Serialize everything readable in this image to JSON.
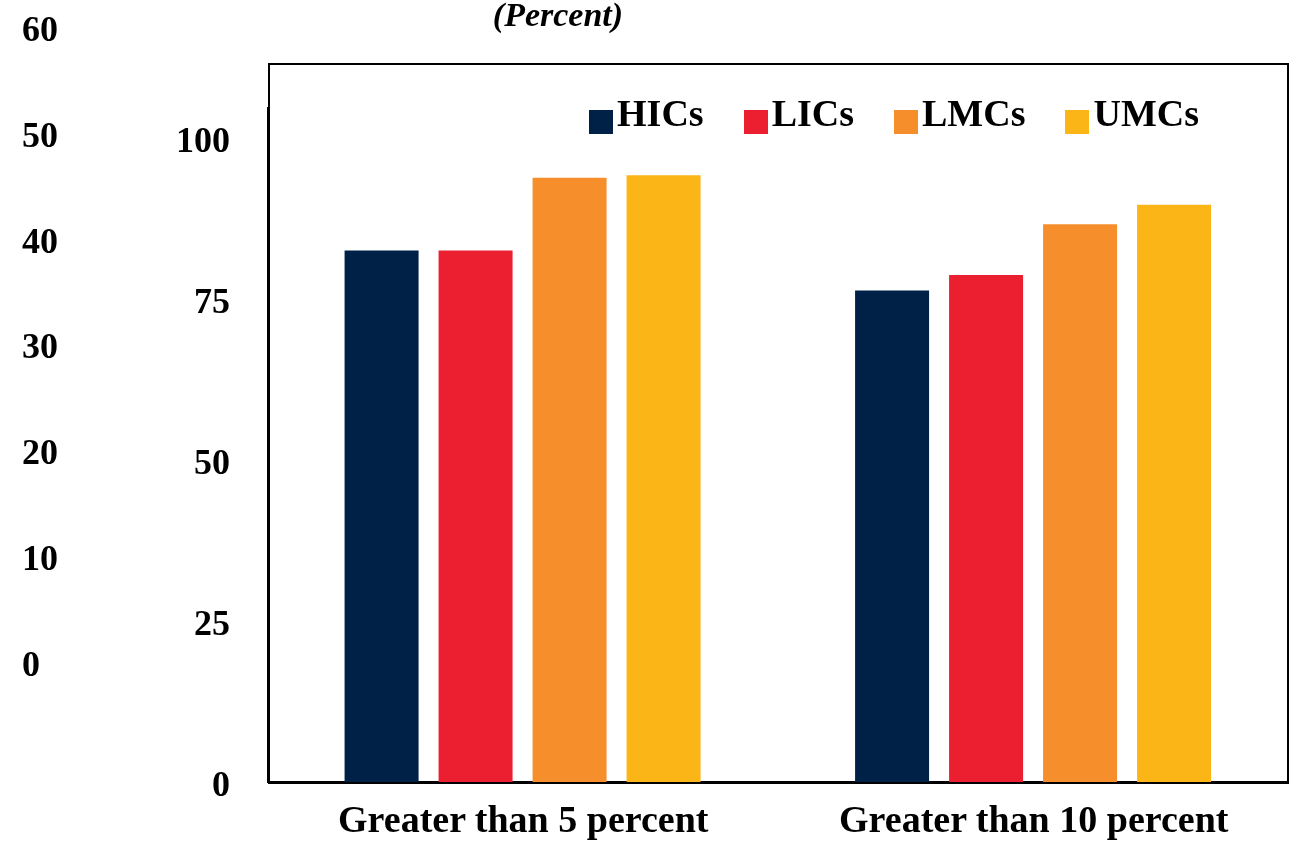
{
  "chart_data": {
    "type": "bar",
    "title": "(Percent)",
    "categories": [
      "Greater than 5 percent",
      "Greater than 10 percent"
    ],
    "series": [
      {
        "name": "HICs",
        "color": "#002147",
        "values": [
          82.7,
          76.5
        ]
      },
      {
        "name": "LICs",
        "color": "#ec1f31",
        "values": [
          82.7,
          78.9
        ]
      },
      {
        "name": "LMCs",
        "color": "#f68e2b",
        "values": [
          94.0,
          86.8
        ]
      },
      {
        "name": "UMCs",
        "color": "#fbb516",
        "values": [
          94.4,
          89.8
        ]
      }
    ],
    "ylim": [
      0,
      105
    ],
    "yticks": [
      0,
      25,
      50,
      75,
      100
    ],
    "grid": false,
    "legend": "top right",
    "annotations": [
      "60",
      "50",
      "40",
      "30",
      "20",
      "10",
      "0"
    ]
  }
}
